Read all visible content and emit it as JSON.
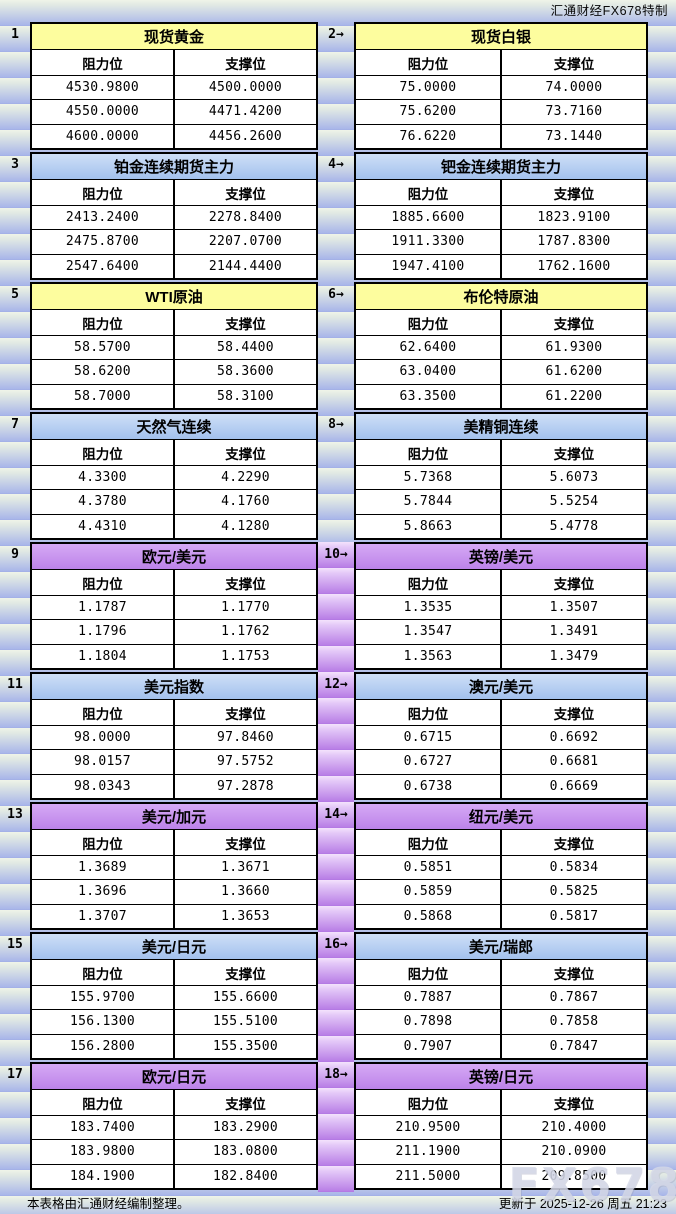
{
  "header": {
    "brand": "汇通财经FX678特制"
  },
  "columns": {
    "resistance": "阻力位",
    "support": "支撑位"
  },
  "watermark": "FX678",
  "footer": {
    "note": "本表格由汇通财经编制整理。",
    "updated": "更新于 2025-12-26 周五 21:23"
  },
  "colors": {
    "header_yellow": "#FDFD9E",
    "header_blue_top": "#CEDFF7",
    "header_blue_bottom": "#A3C1ED",
    "header_purple_top": "#D6A9F5",
    "header_purple_bottom": "#BC83E9"
  },
  "pairs": [
    {
      "strip": "blue",
      "left": {
        "num": "1",
        "title": "现货黄金",
        "theme": "yellow",
        "rows": [
          [
            "4530.9800",
            "4500.0000"
          ],
          [
            "4550.0000",
            "4471.4200"
          ],
          [
            "4600.0000",
            "4456.2600"
          ]
        ]
      },
      "right": {
        "num": "2→",
        "title": "现货白银",
        "theme": "yellow",
        "rows": [
          [
            "75.0000",
            "74.0000"
          ],
          [
            "75.6200",
            "73.7160"
          ],
          [
            "76.6220",
            "73.1440"
          ]
        ]
      }
    },
    {
      "strip": "blue",
      "left": {
        "num": "3",
        "title": "铂金连续期货主力",
        "theme": "blue",
        "rows": [
          [
            "2413.2400",
            "2278.8400"
          ],
          [
            "2475.8700",
            "2207.0700"
          ],
          [
            "2547.6400",
            "2144.4400"
          ]
        ]
      },
      "right": {
        "num": "4→",
        "title": "钯金连续期货主力",
        "theme": "blue",
        "rows": [
          [
            "1885.6600",
            "1823.9100"
          ],
          [
            "1911.3300",
            "1787.8300"
          ],
          [
            "1947.4100",
            "1762.1600"
          ]
        ]
      }
    },
    {
      "strip": "blue",
      "left": {
        "num": "5",
        "title": "WTI原油",
        "theme": "yellow",
        "rows": [
          [
            "58.5700",
            "58.4400"
          ],
          [
            "58.6200",
            "58.3600"
          ],
          [
            "58.7000",
            "58.3100"
          ]
        ]
      },
      "right": {
        "num": "6→",
        "title": "布伦特原油",
        "theme": "yellow",
        "rows": [
          [
            "62.6400",
            "61.9300"
          ],
          [
            "63.0400",
            "61.6200"
          ],
          [
            "63.3500",
            "61.2200"
          ]
        ]
      }
    },
    {
      "strip": "blue",
      "left": {
        "num": "7",
        "title": "天然气连续",
        "theme": "blue",
        "rows": [
          [
            "4.3300",
            "4.2290"
          ],
          [
            "4.3780",
            "4.1760"
          ],
          [
            "4.4310",
            "4.1280"
          ]
        ]
      },
      "right": {
        "num": "8→",
        "title": "美精铜连续",
        "theme": "blue",
        "rows": [
          [
            "5.7368",
            "5.6073"
          ],
          [
            "5.7844",
            "5.5254"
          ],
          [
            "5.8663",
            "5.4778"
          ]
        ]
      }
    },
    {
      "strip": "purple",
      "left": {
        "num": "9",
        "title": "欧元/美元",
        "theme": "purple",
        "rows": [
          [
            "1.1787",
            "1.1770"
          ],
          [
            "1.1796",
            "1.1762"
          ],
          [
            "1.1804",
            "1.1753"
          ]
        ]
      },
      "right": {
        "num": "10→",
        "title": "英镑/美元",
        "theme": "purple",
        "rows": [
          [
            "1.3535",
            "1.3507"
          ],
          [
            "1.3547",
            "1.3491"
          ],
          [
            "1.3563",
            "1.3479"
          ]
        ]
      }
    },
    {
      "strip": "purple",
      "left": {
        "num": "11",
        "title": "美元指数",
        "theme": "blue",
        "rows": [
          [
            "98.0000",
            "97.8460"
          ],
          [
            "98.0157",
            "97.5752"
          ],
          [
            "98.0343",
            "97.2878"
          ]
        ]
      },
      "right": {
        "num": "12→",
        "title": "澳元/美元",
        "theme": "blue",
        "rows": [
          [
            "0.6715",
            "0.6692"
          ],
          [
            "0.6727",
            "0.6681"
          ],
          [
            "0.6738",
            "0.6669"
          ]
        ]
      }
    },
    {
      "strip": "purple",
      "left": {
        "num": "13",
        "title": "美元/加元",
        "theme": "purple",
        "rows": [
          [
            "1.3689",
            "1.3671"
          ],
          [
            "1.3696",
            "1.3660"
          ],
          [
            "1.3707",
            "1.3653"
          ]
        ]
      },
      "right": {
        "num": "14→",
        "title": "纽元/美元",
        "theme": "purple",
        "rows": [
          [
            "0.5851",
            "0.5834"
          ],
          [
            "0.5859",
            "0.5825"
          ],
          [
            "0.5868",
            "0.5817"
          ]
        ]
      }
    },
    {
      "strip": "purple",
      "left": {
        "num": "15",
        "title": "美元/日元",
        "theme": "blue",
        "rows": [
          [
            "155.9700",
            "155.6600"
          ],
          [
            "156.1300",
            "155.5100"
          ],
          [
            "156.2800",
            "155.3500"
          ]
        ]
      },
      "right": {
        "num": "16→",
        "title": "美元/瑞郎",
        "theme": "blue",
        "rows": [
          [
            "0.7887",
            "0.7867"
          ],
          [
            "0.7898",
            "0.7858"
          ],
          [
            "0.7907",
            "0.7847"
          ]
        ]
      }
    },
    {
      "strip": "purple",
      "left": {
        "num": "17",
        "title": "欧元/日元",
        "theme": "purple",
        "rows": [
          [
            "183.7400",
            "183.2900"
          ],
          [
            "183.9800",
            "183.0800"
          ],
          [
            "184.1900",
            "182.8400"
          ]
        ]
      },
      "right": {
        "num": "18→",
        "title": "英镑/日元",
        "theme": "purple",
        "rows": [
          [
            "210.9500",
            "210.4000"
          ],
          [
            "211.1900",
            "210.0900"
          ],
          [
            "211.5000",
            "209.8500"
          ]
        ]
      }
    }
  ]
}
